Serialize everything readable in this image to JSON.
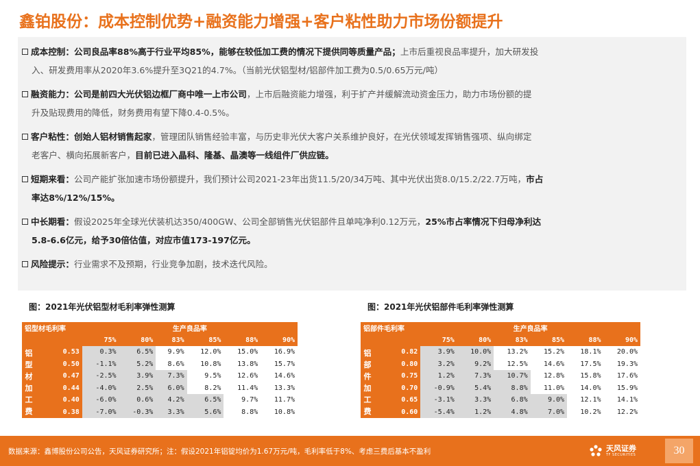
{
  "title": "鑫铂股份：成本控制优势+融资能力增强+客户粘性助力市场份额提升",
  "bullets": [
    {
      "label": "成本控制：",
      "b1": "公司良品率88%高于行业平均85%，能够在较低加工费的情况下提供同等质量产品；",
      "t1": "上市后重视良品率提升，加大研发投",
      "t2": "入、研发费用率从2020年3.6%提升至3Q21的4.7%。（当前光伏铝型材/铝部件加工费为0.5/0.65万元/吨）"
    },
    {
      "label": "融资能力：",
      "b1": "公司是前四大光伏铝边框厂商中唯一上市公司",
      "t1": "，上市后融资能力增强，利于扩产并缓解流动资金压力，助力市场份额的提",
      "t2": "升及贴现费用的降低，财务费用有望下降0.4-0.5%。"
    },
    {
      "label": "客户粘性：",
      "b1": "创始人铝材销售起家",
      "t1": "，管理团队销售经验丰富，与历史非光伏大客户关系维护良好，在光伏领域发挥销售强项、纵向绑定",
      "t2": "老客户、横向拓展新客户，",
      "b2": "目前已进入晶科、隆基、晶澳等一线组件厂供应链。"
    },
    {
      "label": "短期来看：",
      "t1": "公司产能扩张加速市场份额提升，我们预计公司2021-23年出货11.5/20/34万吨、其中光伏出货8.0/15.2/22.7万吨，",
      "b1": "市占",
      "b2": "率达8%/12%/15%。"
    },
    {
      "label": "中长期看：",
      "t1": "假设2025年全球光伏装机达350/400GW、公司全部销售光伏铝部件且单吨净利0.12万元，",
      "b1": "25%市占率情况下归母净利达",
      "b2": "5.8-6.6亿元，给予30倍估值，对应市值173-197亿元。"
    },
    {
      "label": "风险提示：",
      "t1": "行业需求不及预期，行业竞争加剧，技术迭代风险。"
    }
  ],
  "tables": [
    {
      "caption": "图：2021年光伏铝型材毛利率弹性测算",
      "corner": "铝型材毛利率",
      "col_group": "生产良品率",
      "row_label": "铝型材加工费",
      "columns": [
        "75%",
        "80%",
        "83%",
        "85%",
        "88%",
        "90%"
      ],
      "rows": [
        {
          "fee": "0.53",
          "values": [
            "0.3%",
            "6.5%",
            "9.9%",
            "12.0%",
            "15.0%",
            "16.9%"
          ]
        },
        {
          "fee": "0.50",
          "values": [
            "-1.1%",
            "5.2%",
            "8.6%",
            "10.8%",
            "13.8%",
            "15.7%"
          ]
        },
        {
          "fee": "0.47",
          "values": [
            "-2.5%",
            "3.9%",
            "7.3%",
            "9.5%",
            "12.6%",
            "14.6%"
          ]
        },
        {
          "fee": "0.44",
          "values": [
            "-4.0%",
            "2.5%",
            "6.0%",
            "8.2%",
            "11.4%",
            "13.3%"
          ]
        },
        {
          "fee": "0.40",
          "values": [
            "-6.0%",
            "0.6%",
            "4.2%",
            "6.5%",
            "9.7%",
            "11.7%"
          ]
        },
        {
          "fee": "0.38",
          "values": [
            "-7.0%",
            "-0.3%",
            "3.3%",
            "5.6%",
            "8.8%",
            "10.8%"
          ]
        }
      ]
    },
    {
      "caption": "图：2021年光伏铝部件毛利率弹性测算",
      "corner": "铝部件毛利率",
      "col_group": "生产良品率",
      "row_label": "铝部件加工费",
      "columns": [
        "75%",
        "80%",
        "83%",
        "85%",
        "88%",
        "90%"
      ],
      "rows": [
        {
          "fee": "0.82",
          "values": [
            "3.9%",
            "10.0%",
            "13.2%",
            "15.2%",
            "18.1%",
            "20.0%"
          ]
        },
        {
          "fee": "0.80",
          "values": [
            "3.2%",
            "9.2%",
            "12.5%",
            "14.6%",
            "17.5%",
            "19.3%"
          ]
        },
        {
          "fee": "0.75",
          "values": [
            "1.2%",
            "7.3%",
            "10.7%",
            "12.8%",
            "15.8%",
            "17.6%"
          ]
        },
        {
          "fee": "0.70",
          "values": [
            "-0.9%",
            "5.4%",
            "8.8%",
            "11.0%",
            "14.0%",
            "15.9%"
          ]
        },
        {
          "fee": "0.65",
          "values": [
            "-3.1%",
            "3.3%",
            "6.8%",
            "9.0%",
            "12.1%",
            "14.1%"
          ]
        },
        {
          "fee": "0.60",
          "values": [
            "-5.4%",
            "1.2%",
            "4.8%",
            "7.0%",
            "10.2%",
            "12.2%"
          ]
        }
      ]
    }
  ],
  "footer": {
    "source": "数据来源：鑫博股份公司公告，天风证券研究所；注：假设2021年铝锭均价为1.67万元/吨，毛利率低于8%、考虑三费后基本不盈利",
    "logo_cn": "天风证券",
    "logo_en": "TF SECURITIES",
    "page": "30"
  },
  "colors": {
    "accent": "#e8711c",
    "highlight_cell": "#d9d9d9",
    "panel_bg": "#f2f2f2"
  }
}
